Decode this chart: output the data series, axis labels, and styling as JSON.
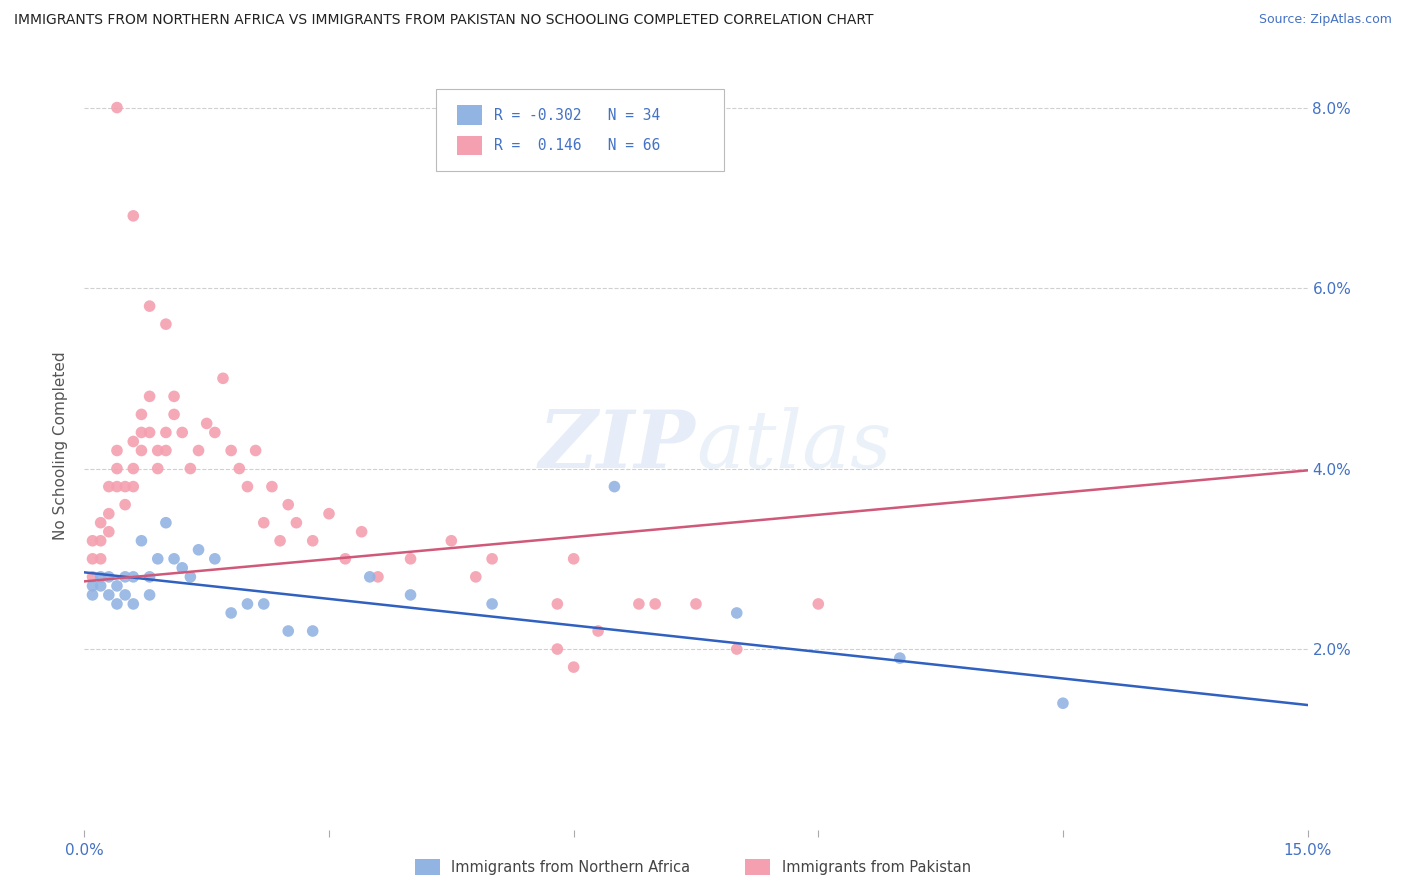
{
  "title": "IMMIGRANTS FROM NORTHERN AFRICA VS IMMIGRANTS FROM PAKISTAN NO SCHOOLING COMPLETED CORRELATION CHART",
  "source": "Source: ZipAtlas.com",
  "ylabel": "No Schooling Completed",
  "r_blue": -0.302,
  "n_blue": 34,
  "r_pink": 0.146,
  "n_pink": 66,
  "xlim": [
    0.0,
    0.15
  ],
  "ylim": [
    0.0,
    0.085
  ],
  "color_blue": "#92b4e3",
  "color_pink": "#f4a0b0",
  "line_blue": "#3060c0",
  "line_pink": "#d05878",
  "blue_intercept": 0.0285,
  "blue_slope": -0.098,
  "pink_intercept": 0.0275,
  "pink_slope": 0.082,
  "blue_x": [
    0.001,
    0.001,
    0.002,
    0.002,
    0.003,
    0.003,
    0.004,
    0.004,
    0.005,
    0.005,
    0.006,
    0.006,
    0.007,
    0.008,
    0.008,
    0.009,
    0.01,
    0.011,
    0.012,
    0.013,
    0.014,
    0.016,
    0.018,
    0.02,
    0.022,
    0.025,
    0.028,
    0.035,
    0.04,
    0.05,
    0.065,
    0.08,
    0.1,
    0.12
  ],
  "blue_y": [
    0.027,
    0.026,
    0.027,
    0.028,
    0.028,
    0.026,
    0.027,
    0.025,
    0.028,
    0.026,
    0.028,
    0.025,
    0.032,
    0.026,
    0.028,
    0.03,
    0.034,
    0.03,
    0.029,
    0.028,
    0.031,
    0.03,
    0.024,
    0.025,
    0.025,
    0.022,
    0.022,
    0.028,
    0.026,
    0.025,
    0.038,
    0.024,
    0.019,
    0.014
  ],
  "pink_x": [
    0.001,
    0.001,
    0.001,
    0.002,
    0.002,
    0.002,
    0.003,
    0.003,
    0.003,
    0.004,
    0.004,
    0.004,
    0.005,
    0.005,
    0.006,
    0.006,
    0.006,
    0.007,
    0.007,
    0.007,
    0.008,
    0.008,
    0.009,
    0.009,
    0.01,
    0.01,
    0.011,
    0.011,
    0.012,
    0.013,
    0.014,
    0.015,
    0.016,
    0.017,
    0.018,
    0.019,
    0.02,
    0.021,
    0.022,
    0.023,
    0.024,
    0.025,
    0.026,
    0.028,
    0.03,
    0.032,
    0.034,
    0.036,
    0.04,
    0.045,
    0.048,
    0.05,
    0.058,
    0.06,
    0.063,
    0.068,
    0.07,
    0.075,
    0.08,
    0.09,
    0.004,
    0.006,
    0.008,
    0.01,
    0.06,
    0.058
  ],
  "pink_y": [
    0.03,
    0.032,
    0.028,
    0.034,
    0.032,
    0.03,
    0.038,
    0.035,
    0.033,
    0.042,
    0.04,
    0.038,
    0.038,
    0.036,
    0.043,
    0.04,
    0.038,
    0.046,
    0.044,
    0.042,
    0.044,
    0.048,
    0.042,
    0.04,
    0.044,
    0.042,
    0.046,
    0.048,
    0.044,
    0.04,
    0.042,
    0.045,
    0.044,
    0.05,
    0.042,
    0.04,
    0.038,
    0.042,
    0.034,
    0.038,
    0.032,
    0.036,
    0.034,
    0.032,
    0.035,
    0.03,
    0.033,
    0.028,
    0.03,
    0.032,
    0.028,
    0.03,
    0.025,
    0.03,
    0.022,
    0.025,
    0.025,
    0.025,
    0.02,
    0.025,
    0.08,
    0.068,
    0.058,
    0.056,
    0.018,
    0.02
  ]
}
